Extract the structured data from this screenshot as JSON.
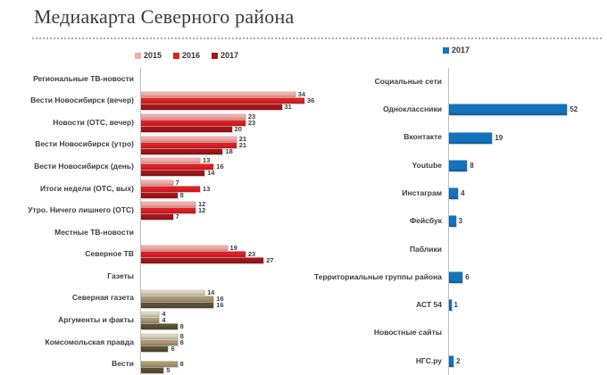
{
  "title": "Медиакарта Северного района",
  "colors": {
    "red_2015": "#F2AFAB",
    "red_2016": "#E02124",
    "red_2017": "#A4161A",
    "tan_2015": "#DDD4C2",
    "tan_2016": "#AC9B74",
    "tan_2017": "#5E5139",
    "blue_2017": "#1573BD",
    "axis": "#BFBFBF",
    "text": "#3D3D3D"
  },
  "chart_data": [
    {
      "id": "tv-press-chart",
      "type": "bar",
      "orientation": "horizontal",
      "grid": false,
      "legend_position": "top",
      "legend": [
        {
          "label": "2015",
          "color": "#F2AFAB"
        },
        {
          "label": "2016",
          "color": "#E02124"
        },
        {
          "label": "2017",
          "color": "#A4161A"
        }
      ],
      "series_names": [
        "2015",
        "2016",
        "2017"
      ],
      "xlim": [
        0,
        37
      ],
      "palettes": {
        "red": [
          "#F2AFAB",
          "#E02124",
          "#A4161A"
        ],
        "tan": [
          "#DDD4C2",
          "#AC9B74",
          "#5E5139"
        ]
      },
      "rows": [
        {
          "label": "Региональные ТВ-новости",
          "header": true
        },
        {
          "label": "Вести Новосибирск (вечер)",
          "palette": "red",
          "values": [
            34,
            36,
            31
          ]
        },
        {
          "label": "Новости (ОТС, вечер)",
          "palette": "red",
          "values": [
            23,
            23,
            20
          ]
        },
        {
          "label": "Вести Новосибирск (утро)",
          "palette": "red",
          "values": [
            21,
            21,
            18
          ]
        },
        {
          "label": "Вести Новосибирск (день)",
          "palette": "red",
          "values": [
            13,
            16,
            14
          ]
        },
        {
          "label": "Итоги недели (ОТС, вых)",
          "palette": "red",
          "values": [
            7,
            13,
            8
          ]
        },
        {
          "label": "Утро. Ничего лишнего (ОТС)",
          "palette": "red",
          "values": [
            12,
            12,
            7
          ]
        },
        {
          "label": "Местные ТВ-новости",
          "header": true
        },
        {
          "label": "Северное ТВ",
          "palette": "red",
          "values": [
            19,
            23,
            27
          ]
        },
        {
          "label": "Газеты",
          "header": true
        },
        {
          "label": "Северная газета",
          "palette": "tan",
          "values": [
            14,
            16,
            16
          ]
        },
        {
          "label": "Аргументы и факты",
          "palette": "tan",
          "values": [
            4,
            4,
            8
          ]
        },
        {
          "label": "Комсомольская правда",
          "palette": "tan",
          "values": [
            8,
            8,
            6
          ]
        },
        {
          "label": "Вести",
          "palette": "tan",
          "values": [
            null,
            8,
            5
          ]
        }
      ]
    },
    {
      "id": "online-chart",
      "type": "bar",
      "orientation": "horizontal",
      "grid": false,
      "legend_position": "top",
      "legend": [
        {
          "label": "2017",
          "color": "#1573BD"
        }
      ],
      "series_names": [
        "2017"
      ],
      "xlim": [
        0,
        55
      ],
      "palettes": {
        "blue": [
          "#1573BD"
        ]
      },
      "rows": [
        {
          "label": "Социальные сети",
          "header": true
        },
        {
          "label": "Одноклассники",
          "palette": "blue",
          "values": [
            52
          ]
        },
        {
          "label": "Вконтакте",
          "palette": "blue",
          "values": [
            19
          ]
        },
        {
          "label": "Youtube",
          "palette": "blue",
          "values": [
            8
          ]
        },
        {
          "label": "Инстаграм",
          "palette": "blue",
          "values": [
            4
          ]
        },
        {
          "label": "Фейсбук",
          "palette": "blue",
          "values": [
            3
          ]
        },
        {
          "label": "Паблики",
          "header": true
        },
        {
          "label": "Территориальные группы района",
          "palette": "blue",
          "values": [
            6
          ]
        },
        {
          "label": "АСТ 54",
          "palette": "blue",
          "values": [
            1
          ]
        },
        {
          "label": "Новостные сайты",
          "header": true
        },
        {
          "label": "НГС.ру",
          "palette": "blue",
          "values": [
            2
          ]
        }
      ]
    }
  ]
}
